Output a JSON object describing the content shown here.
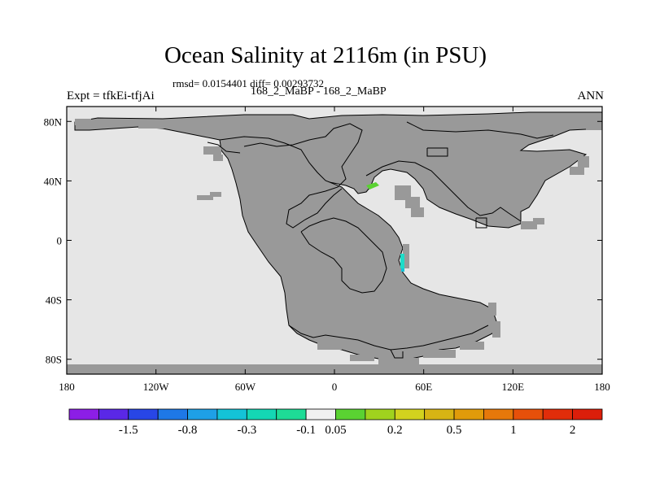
{
  "header": {
    "title": "Ocean Salinity at 2116m (in PSU)",
    "stats": "rmsd= 0.0154401 diff= 0.00293732",
    "left_label": "Expt = tfkEi-tfjAi",
    "subtitle": "168_2_MaBP - 168_2_MaBP",
    "right_label": "ANN"
  },
  "map": {
    "lon_ticks": [
      {
        "lon": -180,
        "label": "180"
      },
      {
        "lon": -120,
        "label": "120W"
      },
      {
        "lon": -60,
        "label": "60W"
      },
      {
        "lon": 0,
        "label": "0"
      },
      {
        "lon": 60,
        "label": "60E"
      },
      {
        "lon": 120,
        "label": "120E"
      },
      {
        "lon": 180,
        "label": "180"
      }
    ],
    "lat_ticks": [
      {
        "lat": 80,
        "label": "80N"
      },
      {
        "lat": 40,
        "label": "40N"
      },
      {
        "lat": 0,
        "label": "0"
      },
      {
        "lat": -40,
        "label": "40S"
      },
      {
        "lat": -80,
        "label": "80S"
      }
    ],
    "colors": {
      "ocean": "#e6e6e6",
      "land": "#999999",
      "coast": "#000000"
    }
  },
  "colorbar": {
    "labels": [
      "-1.5",
      "-0.8",
      "-0.3",
      "-0.1",
      "0.05",
      "0.2",
      "0.5",
      "1",
      "2"
    ],
    "colors": [
      "#8c1ee6",
      "#5a28e6",
      "#2846e6",
      "#1e78e6",
      "#1ea0e6",
      "#14c3d7",
      "#14d7b4",
      "#1edc96",
      "#f0f0f0",
      "#5ad232",
      "#a0d21e",
      "#d2d21e",
      "#d7b414",
      "#e19b0a",
      "#e6780a",
      "#e6500a",
      "#e12d0a",
      "#dc1e0a"
    ]
  }
}
